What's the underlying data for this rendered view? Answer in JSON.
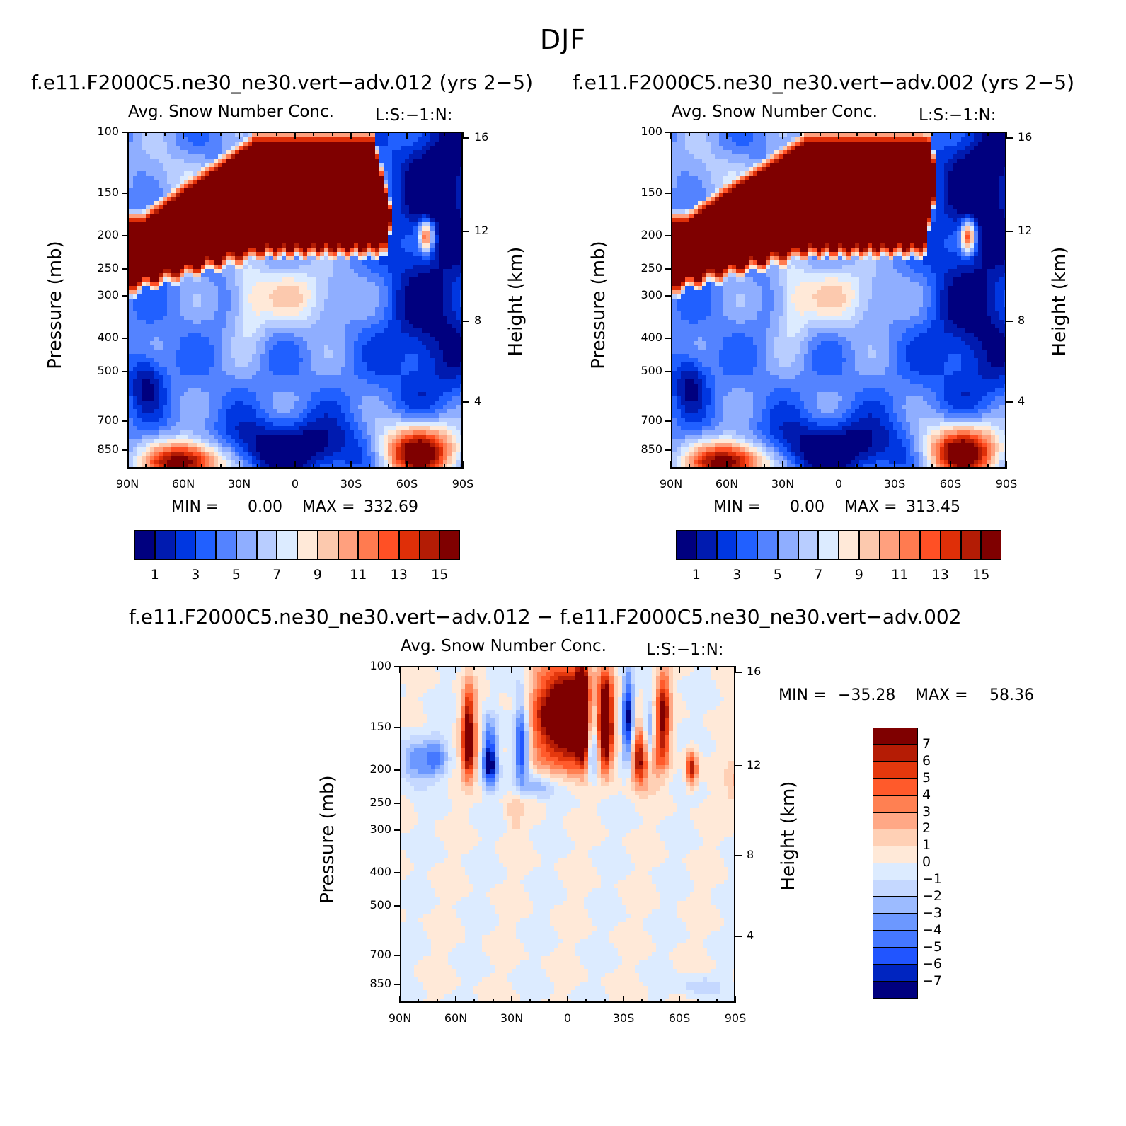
{
  "figure": {
    "title": "DJF",
    "variable": "Avg. Snow Number Conc.",
    "tag": "L:S:−1:N:"
  },
  "colors": {
    "abs_levels": [
      "#00007f",
      "#001bb0",
      "#0037e1",
      "#2160ff",
      "#5483ff",
      "#8faeff",
      "#b8cdff",
      "#dcebff",
      "#ffe9d8",
      "#fcc9ae",
      "#ffa07e",
      "#ff7b50",
      "#ff5025",
      "#df2f08",
      "#b31c05",
      "#7f0000"
    ],
    "diff_levels": [
      "#00007f",
      "#0025c0",
      "#2155ff",
      "#4578ff",
      "#6c98ff",
      "#9cbbff",
      "#c5d8ff",
      "#dcebff",
      "#ffe9d8",
      "#ffd0b5",
      "#ffa886",
      "#ff8052",
      "#ff5a2b",
      "#e4380d",
      "#b51c05",
      "#7f0000"
    ]
  },
  "chart_data": [
    {
      "type": "heatmap",
      "name": "panel-1",
      "case_title": "f.e11.F2000C5.ne30_ne30.vert−adv.012 (yrs 2−5)",
      "title": "Avg. Snow Number Conc.",
      "xlabel": "",
      "ylabel": "Pressure (mb)",
      "y2label": "Height (km)",
      "x_ticks": [
        "90N",
        "60N",
        "30N",
        "0",
        "30S",
        "60S",
        "90S"
      ],
      "y_ticks": [
        "100",
        "150",
        "200",
        "250",
        "300",
        "400",
        "500",
        "700",
        "850"
      ],
      "y2_ticks": [
        "16",
        "12",
        "8",
        "4"
      ],
      "min_label": "MIN =",
      "min_value": "0.00",
      "max_label": "MAX =",
      "max_value": "332.69",
      "colorbar_labels": [
        "1",
        "3",
        "5",
        "7",
        "9",
        "11",
        "13",
        "15"
      ]
    },
    {
      "type": "heatmap",
      "name": "panel-2",
      "case_title": "f.e11.F2000C5.ne30_ne30.vert−adv.002 (yrs 2−5)",
      "title": "Avg. Snow Number Conc.",
      "xlabel": "",
      "ylabel": "Pressure (mb)",
      "y2label": "Height (km)",
      "x_ticks": [
        "90N",
        "60N",
        "30N",
        "0",
        "30S",
        "60S",
        "90S"
      ],
      "y_ticks": [
        "100",
        "150",
        "200",
        "250",
        "300",
        "400",
        "500",
        "700",
        "850"
      ],
      "y2_ticks": [
        "16",
        "12",
        "8",
        "4"
      ],
      "min_label": "MIN =",
      "min_value": "0.00",
      "max_label": "MAX =",
      "max_value": "313.45",
      "colorbar_labels": [
        "1",
        "3",
        "5",
        "7",
        "9",
        "11",
        "13",
        "15"
      ]
    },
    {
      "type": "heatmap",
      "name": "panel-diff",
      "case_title": "f.e11.F2000C5.ne30_ne30.vert−adv.012 − f.e11.F2000C5.ne30_ne30.vert−adv.002",
      "title": "Avg. Snow Number Conc.",
      "xlabel": "",
      "ylabel": "Pressure (mb)",
      "y2label": "Height (km)",
      "x_ticks": [
        "90N",
        "60N",
        "30N",
        "0",
        "30S",
        "60S",
        "90S"
      ],
      "y_ticks": [
        "100",
        "150",
        "200",
        "250",
        "300",
        "400",
        "500",
        "700",
        "850"
      ],
      "y2_ticks": [
        "16",
        "12",
        "8",
        "4"
      ],
      "min_label": "MIN =",
      "min_value": "−35.28",
      "max_label": "MAX =",
      "max_value": "58.36",
      "colorbar_labels": [
        "7",
        "6",
        "5",
        "4",
        "3",
        "2",
        "1",
        "0",
        "−1",
        "−2",
        "−3",
        "−4",
        "−5",
        "−6",
        "−7"
      ]
    }
  ]
}
